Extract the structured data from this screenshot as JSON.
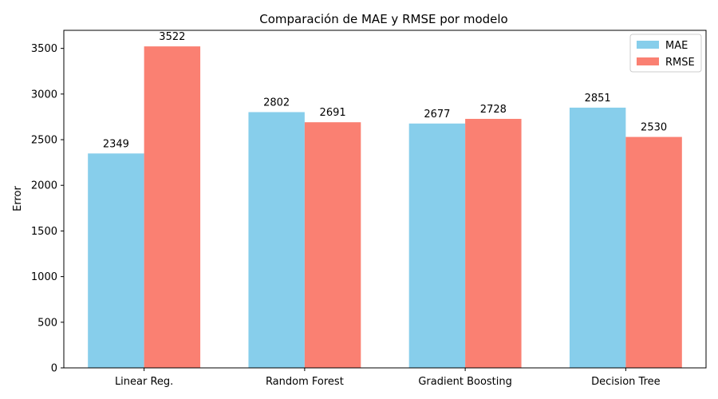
{
  "chart_data": {
    "type": "bar",
    "title": "Comparación de MAE y RMSE por modelo",
    "xlabel": "",
    "ylabel": "Error",
    "categories": [
      "Linear Reg.",
      "Random Forest",
      "Gradient Boosting",
      "Decision Tree"
    ],
    "series": [
      {
        "name": "MAE",
        "values": [
          2349,
          2802,
          2677,
          2851
        ],
        "color": "#87ceeb"
      },
      {
        "name": "RMSE",
        "values": [
          3522,
          2691,
          2728,
          2530
        ],
        "color": "#fa8072"
      }
    ],
    "ylim": [
      0,
      3698
    ],
    "yticks": [
      0,
      500,
      1000,
      1500,
      2000,
      2500,
      3000,
      3500
    ],
    "data_labels": true,
    "grid": false,
    "legend_position": "top-right"
  }
}
